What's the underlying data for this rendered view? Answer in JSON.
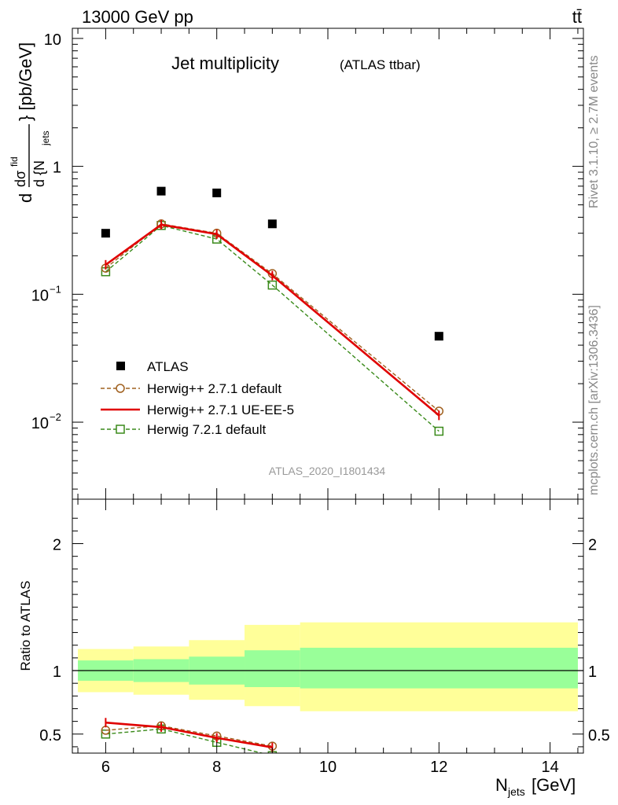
{
  "header": {
    "beam": "13000 GeV pp",
    "process": "tt̄",
    "side_top": "Rivet 3.1.10, ≥ 2.7M events",
    "side_bottom": "mcplots.cern.ch [arXiv:1306.3436]"
  },
  "colors": {
    "data": "#000000",
    "herwigpp_default": "#a0601e",
    "herwigpp_ueee5": "#e00000",
    "herwig7": "#3a8a1a",
    "band_inner": "#99ff99",
    "band_outer": "#ffff99"
  },
  "chart_data": [
    {
      "type": "scatter",
      "title": "Jet multiplicity",
      "subtitle": "(ATLAS ttbar)",
      "analysis_id": "ATLAS_2020_I1801434",
      "ylabel_num": "dσ",
      "ylabel_sup": "fid",
      "ylabel_den": "d {N",
      "ylabel_den_sub": "jets",
      "ylabel_unit": "} [pb/GeV]",
      "yscale": "log",
      "ylim": [
        0.0025,
        12
      ],
      "xlim": [
        5.4,
        14.6
      ],
      "ytick_labels": [
        {
          "base": "10",
          "exp": "−2",
          "value": 0.01
        },
        {
          "base": "10",
          "exp": "−1",
          "value": 0.1
        },
        {
          "base": "1",
          "exp": "",
          "value": 1
        },
        {
          "base": "10",
          "exp": "",
          "value": 10
        }
      ],
      "legend_position": "bottom-left",
      "series": [
        {
          "name": "ATLAS",
          "key": "data",
          "style": "square-marker",
          "x": [
            6,
            7,
            8,
            9,
            12
          ],
          "y": [
            0.3,
            0.64,
            0.62,
            0.355,
            0.047
          ]
        },
        {
          "name": "Herwig++ 2.7.1 default",
          "key": "herwigpp_default",
          "style": "dashed-circle",
          "x": [
            6,
            7,
            8,
            9,
            12
          ],
          "y": [
            0.16,
            0.355,
            0.3,
            0.145,
            0.0122
          ]
        },
        {
          "name": "Herwig++ 2.7.1 UE-EE-5",
          "key": "herwigpp_ueee5",
          "style": "solid-line",
          "x": [
            6,
            7,
            8,
            9,
            12
          ],
          "y": [
            0.17,
            0.35,
            0.295,
            0.14,
            0.0113
          ]
        },
        {
          "name": "Herwig 7.2.1 default",
          "key": "herwig7",
          "style": "dashed-square",
          "x": [
            6,
            7,
            8,
            9,
            12
          ],
          "y": [
            0.15,
            0.345,
            0.27,
            0.118,
            0.0085
          ]
        }
      ]
    },
    {
      "type": "line",
      "ylabel": "Ratio to ATLAS",
      "xlabel_main": "N",
      "xlabel_sub": "jets",
      "xlabel_unit": " [GeV]",
      "xlim": [
        5.4,
        14.6
      ],
      "ylim": [
        0.35,
        2.35
      ],
      "xtick_labels": [
        "6",
        "8",
        "10",
        "12",
        "14"
      ],
      "ytick_labels": [
        "0.5",
        "1",
        "2"
      ],
      "bands": [
        {
          "x": [
            5.5,
            6.5
          ],
          "inner": [
            0.92,
            1.08
          ],
          "outer": [
            0.83,
            1.17
          ]
        },
        {
          "x": [
            6.5,
            7.5
          ],
          "inner": [
            0.91,
            1.09
          ],
          "outer": [
            0.81,
            1.19
          ]
        },
        {
          "x": [
            7.5,
            8.5
          ],
          "inner": [
            0.89,
            1.11
          ],
          "outer": [
            0.77,
            1.24
          ]
        },
        {
          "x": [
            8.5,
            9.5
          ],
          "inner": [
            0.87,
            1.16
          ],
          "outer": [
            0.72,
            1.36
          ]
        },
        {
          "x": [
            9.5,
            14.5
          ],
          "inner": [
            0.86,
            1.18
          ],
          "outer": [
            0.68,
            1.38
          ]
        }
      ],
      "series": [
        {
          "name": "Herwig++ 2.7.1 default",
          "key": "herwigpp_default",
          "style": "dashed-circle",
          "x": [
            6,
            7,
            8,
            9
          ],
          "y": [
            0.53,
            0.565,
            0.485,
            0.405
          ]
        },
        {
          "name": "Herwig++ 2.7.1 UE-EE-5",
          "key": "herwigpp_ueee5",
          "style": "solid-line",
          "x": [
            6,
            7,
            8,
            9
          ],
          "y": [
            0.59,
            0.555,
            0.47,
            0.395
          ]
        },
        {
          "name": "Herwig 7.2.1 default",
          "key": "herwig7",
          "style": "dashed-square",
          "x": [
            6,
            7,
            8,
            9
          ],
          "y": [
            0.5,
            0.54,
            0.435,
            0.33
          ]
        }
      ]
    }
  ]
}
